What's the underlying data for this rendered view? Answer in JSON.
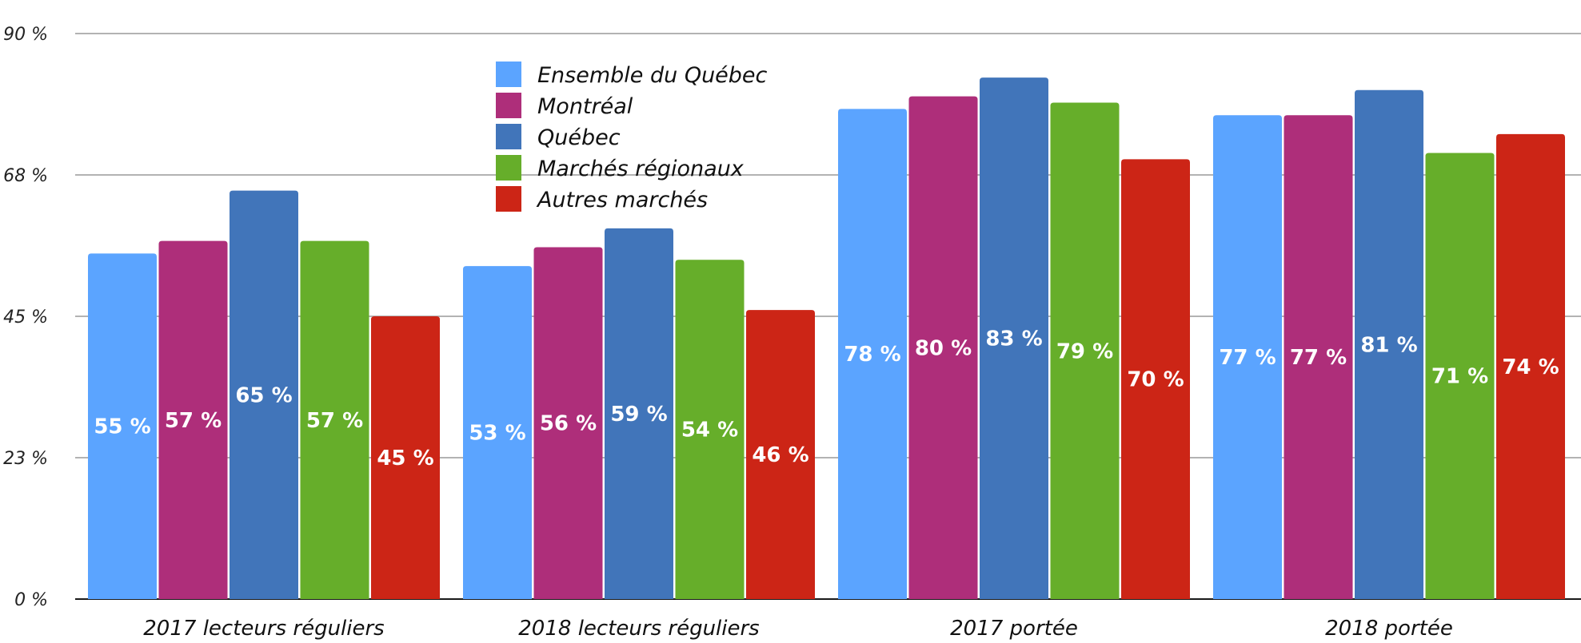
{
  "chart_data": {
    "type": "bar",
    "title": "",
    "xlabel": "",
    "ylabel": "",
    "ylim": [
      0,
      90
    ],
    "y_ticks": [
      "0 %",
      "23 %",
      "45 %",
      "68 %",
      "90 %"
    ],
    "grid": "horizontal",
    "legend_position": "top-center",
    "categories": [
      "2017 lecteurs réguliers",
      "2018 lecteurs réguliers",
      "2017 portée",
      "2018 portée"
    ],
    "series": [
      {
        "name": "Ensemble du Québec",
        "color": "#5BA4FF",
        "values": [
          55,
          53,
          78,
          77
        ],
        "labels": [
          "55 %",
          "53 %",
          "78 %",
          "77 %"
        ]
      },
      {
        "name": "Montréal",
        "color": "#AE2E7A",
        "values": [
          57,
          56,
          80,
          77
        ],
        "labels": [
          "57 %",
          "56 %",
          "80 %",
          "77 %"
        ]
      },
      {
        "name": "Québec",
        "color": "#4175BA",
        "values": [
          65,
          59,
          83,
          81
        ],
        "labels": [
          "65 %",
          "59 %",
          "83 %",
          "81 %"
        ]
      },
      {
        "name": "Marchés régionaux",
        "color": "#66AE2A",
        "values": [
          57,
          54,
          79,
          71
        ],
        "labels": [
          "57 %",
          "54 %",
          "79 %",
          "71 %"
        ]
      },
      {
        "name": "Autres marchés",
        "color": "#CC2516",
        "values": [
          45,
          46,
          70,
          74
        ],
        "labels": [
          "45 %",
          "46 %",
          "70 %",
          "74 %"
        ]
      }
    ]
  }
}
